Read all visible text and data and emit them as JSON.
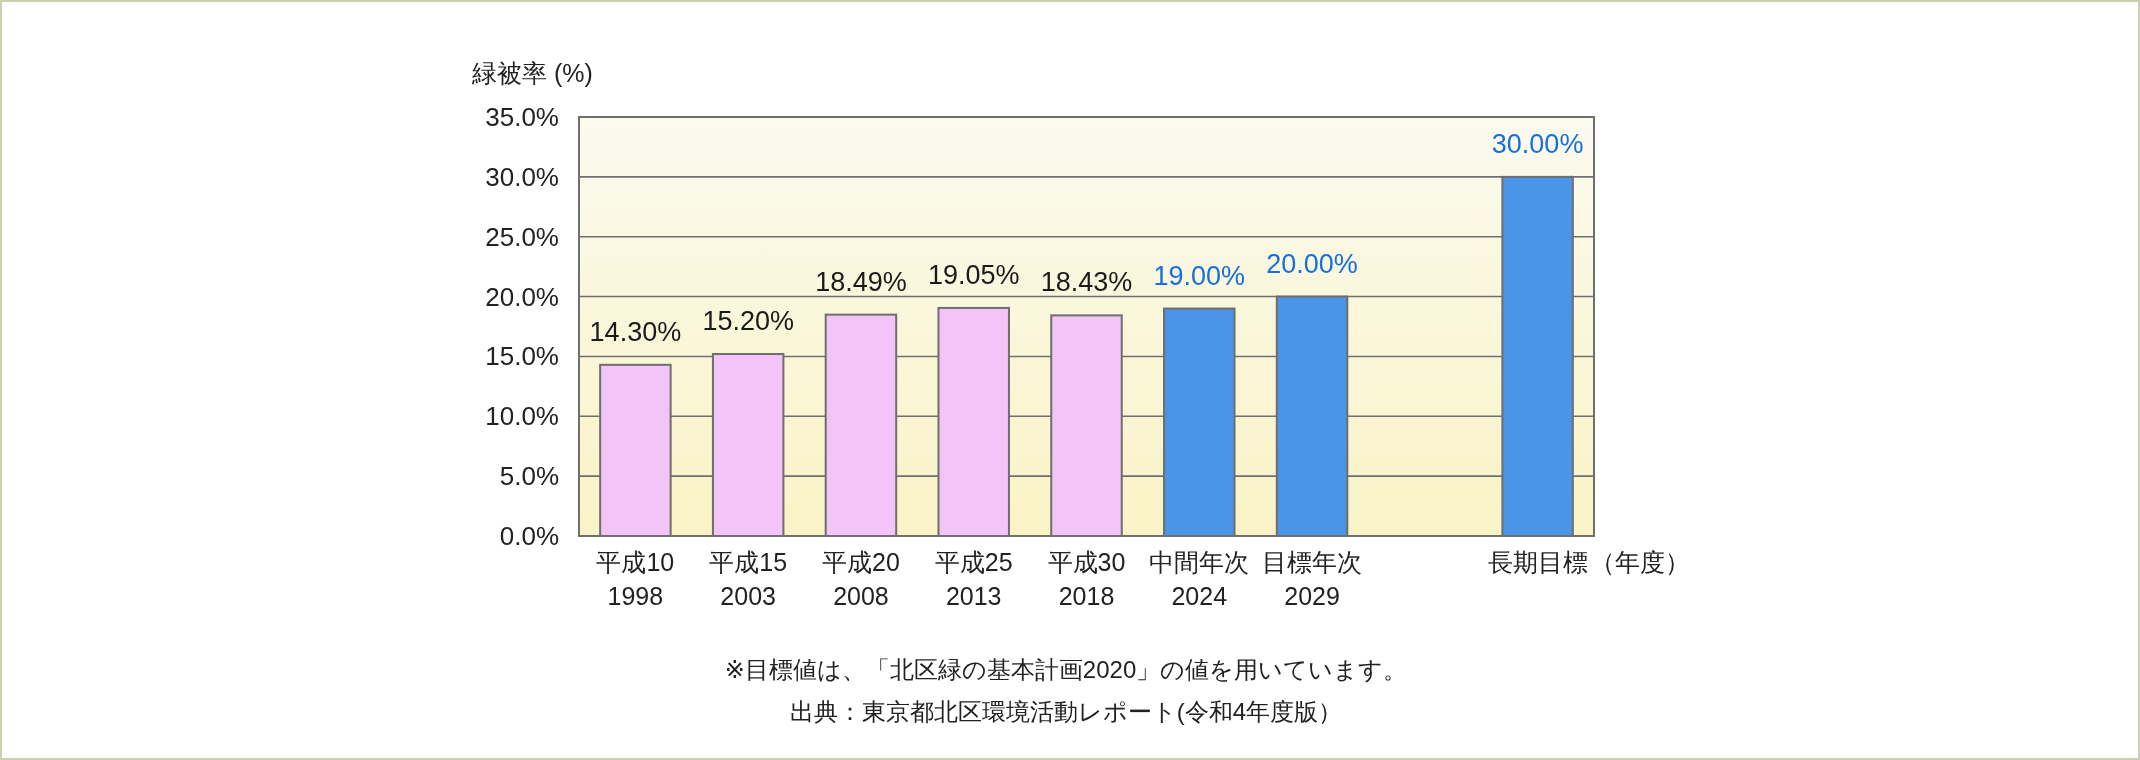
{
  "chart_data": {
    "type": "bar",
    "ylabel": "緑被率 (%)",
    "xlabel": "（年度）",
    "categories": [
      "平成10\n1998",
      "平成15\n2003",
      "平成20\n2008",
      "平成25\n2013",
      "平成30\n2018",
      "中間年次\n2024",
      "目標年次\n2029",
      null,
      "長期目標"
    ],
    "values": [
      14.3,
      15.2,
      18.49,
      19.05,
      18.43,
      19.0,
      20.0,
      null,
      30.0
    ],
    "colors": [
      "#f2c4f8",
      "#f2c4f8",
      "#f2c4f8",
      "#f2c4f8",
      "#f2c4f8",
      "#4a95e8",
      "#4a95e8",
      null,
      "#4a95e8"
    ],
    "value_labels": [
      "14.30%",
      "15.20%",
      "18.49%",
      "19.05%",
      "18.43%",
      "19.00%",
      "20.00%",
      null,
      "30.00%"
    ],
    "ylim": [
      0,
      35
    ],
    "yticks": [
      {
        "value": 0,
        "label": "0.0%"
      },
      {
        "value": 5,
        "label": "5.0%"
      },
      {
        "value": 10,
        "label": "10.0%"
      },
      {
        "value": 15,
        "label": "15.0%"
      },
      {
        "value": 20,
        "label": "20.0%"
      },
      {
        "value": 25,
        "label": "25.0%"
      },
      {
        "value": 30,
        "label": "30.0%"
      },
      {
        "value": 35,
        "label": "35.0%"
      }
    ],
    "grid": "y",
    "annotations": [
      "※目標値は、「北区緑の基本計画2020」の値を用いています。",
      "出典：東京都北区環境活動レポート(令和4年度版）"
    ]
  }
}
